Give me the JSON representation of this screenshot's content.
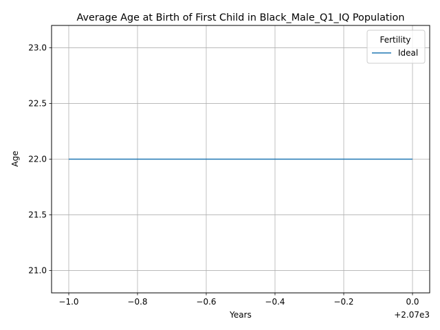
{
  "chart_data": {
    "type": "line",
    "title": "Average Age at Birth of First Child in Black_Male_Q1_IQ Population",
    "xlabel": "Years",
    "ylabel": "Age",
    "x_offset_label": "+2.07e3",
    "x": [
      2069,
      2070
    ],
    "series": [
      {
        "name": "Ideal",
        "values": [
          22.0,
          22.0
        ],
        "color": "#1f77b4"
      }
    ],
    "xlim": [
      2068.95,
      2070.05
    ],
    "ylim": [
      20.8,
      23.2
    ],
    "x_ticks": [
      {
        "value": 2069.0,
        "label": "−1.0"
      },
      {
        "value": 2069.2,
        "label": "−0.8"
      },
      {
        "value": 2069.4,
        "label": "−0.6"
      },
      {
        "value": 2069.6,
        "label": "−0.4"
      },
      {
        "value": 2069.8,
        "label": "−0.2"
      },
      {
        "value": 2070.0,
        "label": "0.0"
      }
    ],
    "y_ticks": [
      {
        "value": 21.0,
        "label": "21.0"
      },
      {
        "value": 21.5,
        "label": "21.5"
      },
      {
        "value": 22.0,
        "label": "22.0"
      },
      {
        "value": 22.5,
        "label": "22.5"
      },
      {
        "value": 23.0,
        "label": "23.0"
      }
    ],
    "grid": true,
    "legend": {
      "title": "Fertility",
      "placement": "top-right"
    }
  }
}
